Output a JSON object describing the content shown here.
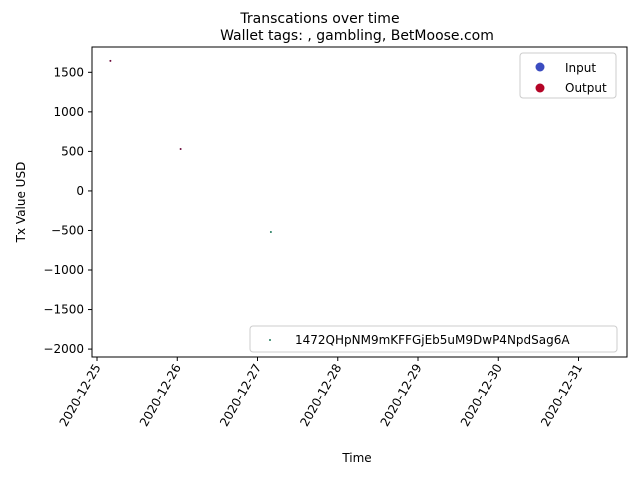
{
  "chart_data": {
    "type": "scatter",
    "suptitle": "Transcations over time",
    "title": "Wallet tags: , gambling, BetMoose.com",
    "xlabel": "Time",
    "ylabel": "Tx Value USD",
    "x_type": "date",
    "xlim": [
      "2020-12-24T22:30",
      "2020-12-31T14:30"
    ],
    "ylim": [
      -2100,
      1820
    ],
    "x_ticks": [
      "2020-12-25",
      "2020-12-26",
      "2020-12-27",
      "2020-12-28",
      "2020-12-29",
      "2020-12-30",
      "2020-12-31"
    ],
    "y_ticks": [
      1500,
      1000,
      500,
      0,
      -500,
      -1000,
      -1500,
      -2000
    ],
    "y_tick_labels": [
      "1500",
      "1000",
      "500",
      "0",
      "−500",
      "−1000",
      "−1500",
      "−2000"
    ],
    "points": [
      {
        "x": "2020-12-25T04:00",
        "y": 1645,
        "type": "Output",
        "color": "#6b0a3a"
      },
      {
        "x": "2020-12-26T01:00",
        "y": 530,
        "type": "Output",
        "color": "#6b0a3a"
      },
      {
        "x": "2020-12-27T04:00",
        "y": -520,
        "type": "Input",
        "color": "#1f7a5c"
      }
    ],
    "legend_types": {
      "position": "top-right",
      "entries": [
        {
          "label": "Input",
          "color": "#3b4cc0"
        },
        {
          "label": "Output",
          "color": "#b40426"
        }
      ]
    },
    "legend_address": {
      "position": "lower-right",
      "label": "1472QHpNM9mKFFGjEb5uM9DwP4NpdSag6A",
      "color": "#1f7a5c"
    },
    "grid": false
  }
}
